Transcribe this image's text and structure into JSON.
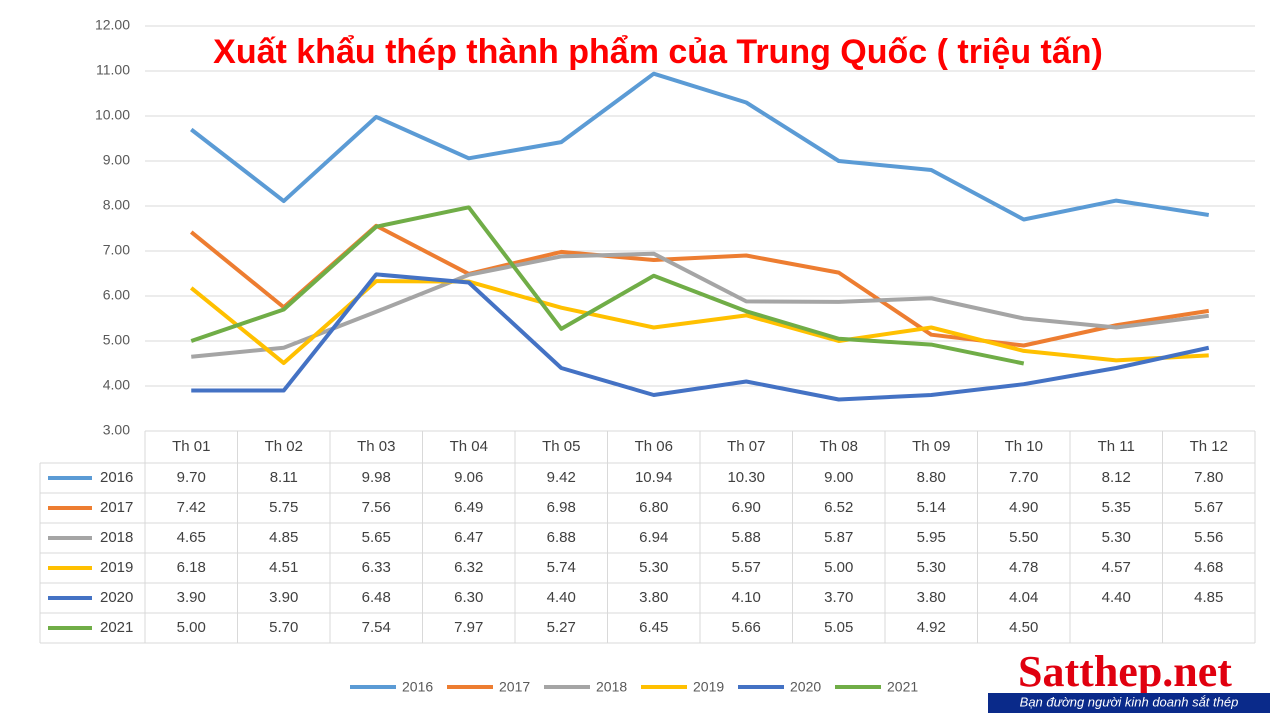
{
  "chart_data": {
    "type": "line",
    "title": "Xuất khẩu thép thành phẩm của Trung Quốc  ( triệu tấn)",
    "categories": [
      "Th 01",
      "Th 02",
      "Th 03",
      "Th 04",
      "Th 05",
      "Th 06",
      "Th 07",
      "Th 08",
      "Th 09",
      "Th 10",
      "Th 11",
      "Th 12"
    ],
    "series": [
      {
        "name": "2016",
        "color": "#5b9bd5",
        "values": [
          9.7,
          8.11,
          9.98,
          9.06,
          9.42,
          10.94,
          10.3,
          9.0,
          8.8,
          7.7,
          8.12,
          7.8
        ],
        "value_labels": [
          "9.70",
          "8.11",
          "9.98",
          "9.06",
          "9.42",
          "10.94",
          "10.30",
          "9.00",
          "8.80",
          "7.70",
          "8.12",
          "7.80"
        ]
      },
      {
        "name": "2017",
        "color": "#ed7d31",
        "values": [
          7.42,
          5.75,
          7.56,
          6.49,
          6.98,
          6.8,
          6.9,
          6.52,
          5.14,
          4.9,
          5.35,
          5.67
        ],
        "value_labels": [
          "7.42",
          "5.75",
          "7.56",
          "6.49",
          "6.98",
          "6.80",
          "6.90",
          "6.52",
          "5.14",
          "4.90",
          "5.35",
          "5.67"
        ]
      },
      {
        "name": "2018",
        "color": "#a5a5a5",
        "values": [
          4.65,
          4.85,
          5.65,
          6.47,
          6.88,
          6.94,
          5.88,
          5.87,
          5.95,
          5.5,
          5.3,
          5.56
        ],
        "value_labels": [
          "4.65",
          "4.85",
          "5.65",
          "6.47",
          "6.88",
          "6.94",
          "5.88",
          "5.87",
          "5.95",
          "5.50",
          "5.30",
          "5.56"
        ]
      },
      {
        "name": "2019",
        "color": "#ffc000",
        "values": [
          6.18,
          4.51,
          6.33,
          6.32,
          5.74,
          5.3,
          5.57,
          5.0,
          5.3,
          4.78,
          4.57,
          4.68
        ],
        "value_labels": [
          "6.18",
          "4.51",
          "6.33",
          "6.32",
          "5.74",
          "5.30",
          "5.57",
          "5.00",
          "5.30",
          "4.78",
          "4.57",
          "4.68"
        ]
      },
      {
        "name": "2020",
        "color": "#4472c4",
        "values": [
          3.9,
          3.9,
          6.48,
          6.3,
          4.4,
          3.8,
          4.1,
          3.7,
          3.8,
          4.04,
          4.4,
          4.85
        ],
        "value_labels": [
          "3.90",
          "3.90",
          "6.48",
          "6.30",
          "4.40",
          "3.80",
          "4.10",
          "3.70",
          "3.80",
          "4.04",
          "4.40",
          "4.85"
        ]
      },
      {
        "name": "2021",
        "color": "#70ad47",
        "values": [
          5.0,
          5.7,
          7.54,
          7.97,
          5.27,
          6.45,
          5.66,
          5.05,
          4.92,
          4.5,
          null,
          null
        ],
        "value_labels": [
          "5.00",
          "5.70",
          "7.54",
          "7.97",
          "5.27",
          "6.45",
          "5.66",
          "5.05",
          "4.92",
          "4.50",
          null,
          null
        ]
      }
    ],
    "ylim": [
      3,
      12
    ],
    "yticks": [
      {
        "value": 3,
        "label": "3.00"
      },
      {
        "value": 4,
        "label": "4.00"
      },
      {
        "value": 5,
        "label": "5.00"
      },
      {
        "value": 6,
        "label": "6.00"
      },
      {
        "value": 7,
        "label": "7.00"
      },
      {
        "value": 8,
        "label": "8.00"
      },
      {
        "value": 9,
        "label": "9.00"
      },
      {
        "value": 10,
        "label": "10.00"
      },
      {
        "value": 11,
        "label": "11.00"
      },
      {
        "value": 12,
        "label": "12.00"
      }
    ],
    "grid": true
  },
  "logo": {
    "name": "Satthep.net",
    "slogan": "Bạn đường người kinh doanh sắt thép"
  }
}
